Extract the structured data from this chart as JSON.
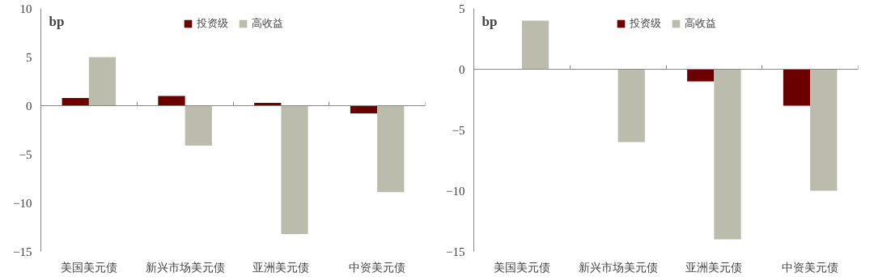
{
  "chart_data": [
    {
      "type": "bar",
      "ylabel": "bp",
      "categories": [
        "美国美元债",
        "新兴市场美元债",
        "亚洲美元债",
        "中资美元债"
      ],
      "ylim": [
        -15,
        10
      ],
      "yticks": [
        -15,
        -10,
        -5,
        0,
        5,
        10
      ],
      "legend": "top",
      "series": [
        {
          "name": "投资级",
          "color": "#6b0000",
          "values": [
            0.8,
            1.0,
            0.3,
            -0.8
          ]
        },
        {
          "name": "高收益",
          "color": "#bcbcac",
          "values": [
            5.0,
            -4.1,
            -13.2,
            -8.9
          ]
        }
      ]
    },
    {
      "type": "bar",
      "ylabel": "bp",
      "categories": [
        "美国美元债",
        "新兴市场美元债",
        "亚洲美元债",
        "中资美元债"
      ],
      "ylim": [
        -15,
        5
      ],
      "yticks": [
        -15,
        -10,
        -5,
        0,
        5
      ],
      "legend": "top",
      "series": [
        {
          "name": "投资级",
          "color": "#6b0000",
          "values": [
            0,
            0,
            -1.0,
            -3.0
          ]
        },
        {
          "name": "高收益",
          "color": "#bcbcac",
          "values": [
            4.0,
            -6.0,
            -14.0,
            -10.0
          ]
        }
      ]
    }
  ]
}
